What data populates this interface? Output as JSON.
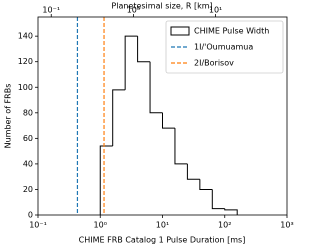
{
  "chart_data": {
    "type": "histogram",
    "x_label": "CHIME FRB Catalog 1 Pulse Duration [ms]",
    "x2_label": "Planetesimal size, R [km]",
    "y_label": "Number of FRBs",
    "xscale": "log",
    "x2scale": "log",
    "bins": [
      1,
      1.585,
      2.512,
      3.981,
      6.31,
      10,
      15.85,
      25.12,
      39.81,
      63.1,
      100,
      158.5
    ],
    "values": [
      54,
      98,
      140,
      120,
      80,
      68,
      40,
      28,
      20,
      5,
      4
    ],
    "name": "CHIME Pulse Width",
    "color": "#000000",
    "vlines": [
      {
        "name": "1I/'Oumuamua",
        "x": 0.43,
        "color": "#1f77b4"
      },
      {
        "name": "2I/Borisov",
        "x": 1.15,
        "color": "#ff7f0e"
      }
    ],
    "xlim": [
      0.1,
      1000
    ],
    "xticks": [
      {
        "value": 0.1,
        "label": "10⁻¹"
      },
      {
        "value": 1,
        "label": "10⁰"
      },
      {
        "value": 10,
        "label": "10¹"
      },
      {
        "value": 100,
        "label": "10²"
      },
      {
        "value": 1000,
        "label": "10³"
      }
    ],
    "x2lim": [
      0.069,
      74
    ],
    "x2ticks": [
      {
        "value": 0.1,
        "label": "10⁻¹"
      },
      {
        "value": 1,
        "label": "10⁰"
      },
      {
        "value": 10,
        "label": "10¹"
      }
    ],
    "ylim": [
      0,
      155
    ],
    "yticks": [
      0,
      20,
      40,
      60,
      80,
      100,
      120,
      140
    ],
    "legend": "upper right"
  }
}
